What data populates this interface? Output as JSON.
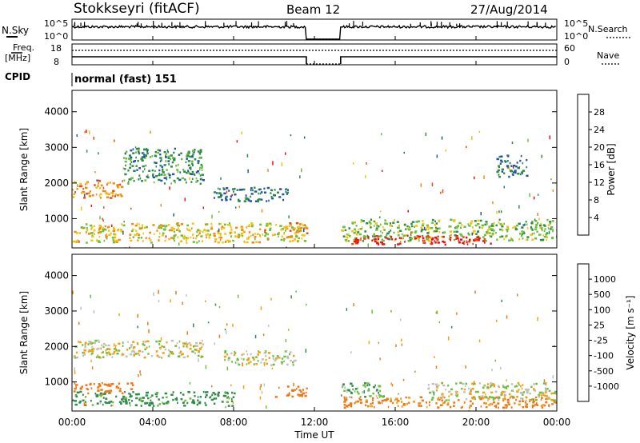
{
  "header": {
    "station": "Stokkseyri (fitACF)",
    "beam": "Beam 12",
    "date": "27/Aug/2014"
  },
  "top_panels": {
    "nsky_label": "N.Sky",
    "nsky_tick_hi": "10^5",
    "nsky_tick_lo": "10^0",
    "nsearch_label": "N.Search",
    "nsearch_tick_hi": "10^5",
    "nsearch_tick_lo": "10^0",
    "freq_label_1": "Freq.",
    "freq_label_2": "[MHz]",
    "freq_tick_hi": "18",
    "freq_tick_lo": "8",
    "nave_label": "Nave",
    "nave_tick_hi": "60",
    "nave_tick_lo": "0",
    "cpid_label": "CPID",
    "cpid_value": "normal (fast) 151"
  },
  "axes": {
    "ylabel": "Slant Range [km]",
    "xlabel": "Time UT",
    "yticks": [
      "1000",
      "2000",
      "3000",
      "4000"
    ],
    "xticks": [
      "00:00",
      "04:00",
      "08:00",
      "12:00",
      "16:00",
      "20:00",
      "00:00"
    ]
  },
  "colorbars": {
    "power": {
      "label": "Power [dB]",
      "ticks": [
        "4",
        "8",
        "12",
        "16",
        "20",
        "24",
        "28"
      ],
      "colors": [
        "#1e28d8",
        "#2454a8",
        "#2e8c4a",
        "#6cbf3a",
        "#f2c20c",
        "#f08a14",
        "#e84a14",
        "#ea1010"
      ]
    },
    "velocity": {
      "label": "Velocity [m s⁻¹]",
      "ticks": [
        "1000",
        "500",
        "100",
        "25",
        "-25",
        "-100",
        "-500",
        "-1000"
      ],
      "colors": [
        "#1e3ad0",
        "#2c62a8",
        "#2e8c4a",
        "#6cbf3a",
        "#c0c0bc",
        "#f2a010",
        "#f07814",
        "#e84a14",
        "#ea1010"
      ]
    }
  },
  "chart_data": {
    "type": "heatmap",
    "title": "Stokkseyri (fitACF) Beam 12 27/Aug/2014",
    "x_range_hours": [
      0,
      24
    ],
    "y_range_km": [
      180,
      4600
    ],
    "data_gap_hours": [
      11.6,
      13.3
    ],
    "panels": [
      {
        "name": "Power [dB]",
        "regions": [
          {
            "t": [
              0.0,
              2.5
            ],
            "r": [
              1600,
              2100
            ],
            "value": 22
          },
          {
            "t": [
              0.0,
              11.6
            ],
            "r": [
              350,
              900
            ],
            "value": 18
          },
          {
            "t": [
              2.5,
              6.5
            ],
            "r": [
              2000,
              3000
            ],
            "value": 10
          },
          {
            "t": [
              7.0,
              10.8
            ],
            "r": [
              1500,
              1900
            ],
            "value": 8
          },
          {
            "t": [
              10.5,
              11.6
            ],
            "r": [
              600,
              900
            ],
            "value": 22
          },
          {
            "t": [
              13.3,
              24.0
            ],
            "r": [
              400,
              1000
            ],
            "value": 14
          },
          {
            "t": [
              13.8,
              20.8
            ],
            "r": [
              300,
              550
            ],
            "value": 30
          },
          {
            "t": [
              21.0,
              22.5
            ],
            "r": [
              2200,
              2800
            ],
            "value": 8
          }
        ]
      },
      {
        "name": "Velocity [m s-1]",
        "regions": [
          {
            "t": [
              0.0,
              6.5
            ],
            "r": [
              1700,
              2200
            ],
            "value": 0
          },
          {
            "t": [
              0.0,
              3.0
            ],
            "r": [
              700,
              1000
            ],
            "value": -300
          },
          {
            "t": [
              0.0,
              8.0
            ],
            "r": [
              350,
              750
            ],
            "value": 150
          },
          {
            "t": [
              7.5,
              11.0
            ],
            "r": [
              1500,
              1900
            ],
            "value": 0
          },
          {
            "t": [
              10.0,
              11.6
            ],
            "r": [
              600,
              900
            ],
            "value": -300
          },
          {
            "t": [
              13.3,
              24.0
            ],
            "r": [
              300,
              600
            ],
            "value": -150
          },
          {
            "t": [
              13.3,
              15.5
            ],
            "r": [
              600,
              1000
            ],
            "value": 80
          },
          {
            "t": [
              17.5,
              24.0
            ],
            "r": [
              500,
              1000
            ],
            "value": 0
          }
        ]
      }
    ]
  }
}
